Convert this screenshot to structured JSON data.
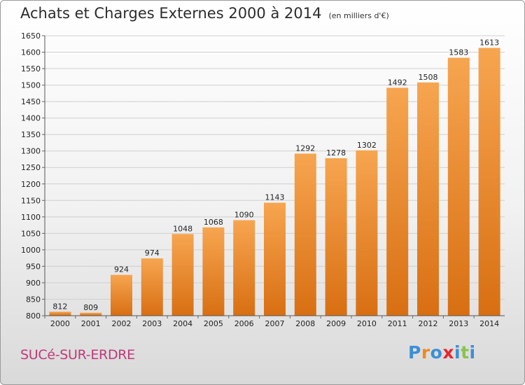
{
  "header": {
    "title": "Achats et Charges Externes 2000 à 2014",
    "subtitle": "(en milliers d'€)"
  },
  "footer": {
    "city": "SUCé-SUR-ERDRE",
    "logo": {
      "text": "Proxiti",
      "letters": [
        {
          "char": "P",
          "color": "#3b8fd6"
        },
        {
          "char": "r",
          "color": "#f08a1c"
        },
        {
          "char": "o",
          "color": "#3b8fd6"
        },
        {
          "char": "x",
          "color": "#e8262b"
        },
        {
          "char": "i",
          "color": "#3b8fd6"
        },
        {
          "char": "t",
          "color": "#8bc34a"
        },
        {
          "char": "i",
          "color": "#3b8fd6"
        }
      ]
    }
  },
  "chart_data": {
    "type": "bar",
    "title": "Achats et Charges Externes 2000 à 2014",
    "subtitle": "(en milliers d'€)",
    "categories": [
      "2000",
      "2001",
      "2002",
      "2003",
      "2004",
      "2005",
      "2006",
      "2007",
      "2008",
      "2009",
      "2010",
      "2011",
      "2012",
      "2013",
      "2014"
    ],
    "values": [
      812,
      809,
      924,
      974,
      1048,
      1068,
      1090,
      1143,
      1292,
      1278,
      1302,
      1492,
      1508,
      1583,
      1613
    ],
    "ylim": [
      800,
      1650
    ],
    "yticks": [
      800,
      850,
      900,
      950,
      1000,
      1050,
      1100,
      1150,
      1200,
      1250,
      1300,
      1350,
      1400,
      1450,
      1500,
      1550,
      1600,
      1650
    ],
    "grid": true,
    "bar_color": "#f08a2a",
    "xlabel": "",
    "ylabel": ""
  }
}
